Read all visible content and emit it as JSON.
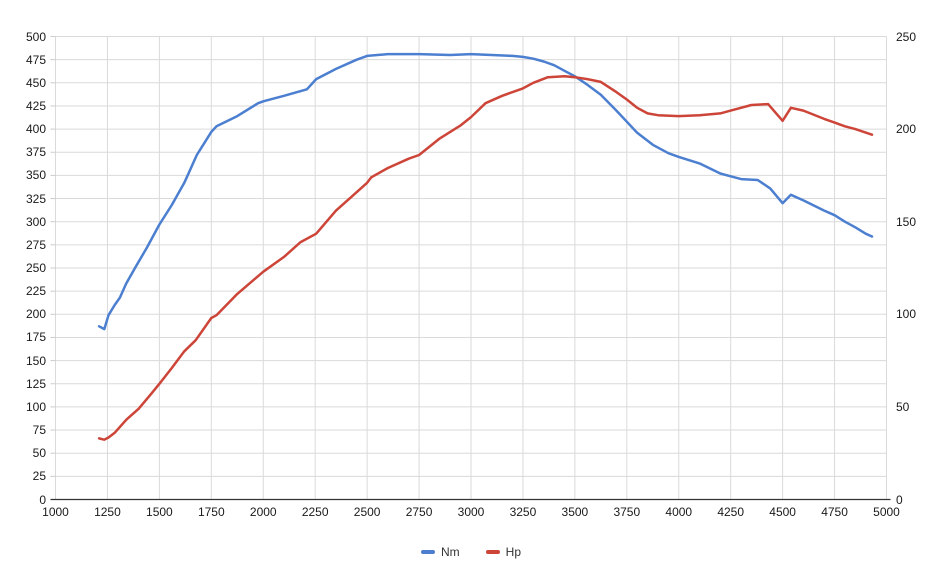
{
  "chart_data": {
    "type": "line",
    "title": "",
    "xlabel": "",
    "ylabel_left": "",
    "ylabel_right": "",
    "grid": true,
    "legend_position": "bottom",
    "x_axis": {
      "min": 1000,
      "max": 5000,
      "tick_step": 250,
      "ticks": [
        1000,
        1250,
        1500,
        1750,
        2000,
        2250,
        2500,
        2750,
        3000,
        3250,
        3500,
        3750,
        4000,
        4250,
        4500,
        4750,
        5000
      ]
    },
    "y_left": {
      "min": 0,
      "max": 500,
      "tick_step": 25,
      "ticks": [
        0,
        25,
        50,
        75,
        100,
        125,
        150,
        175,
        200,
        225,
        250,
        275,
        300,
        325,
        350,
        375,
        400,
        425,
        450,
        475,
        500
      ]
    },
    "y_right": {
      "min": 0,
      "max": 250,
      "tick_step": 50,
      "ticks": [
        0,
        50,
        100,
        150,
        200,
        250
      ]
    },
    "series": [
      {
        "name": "Nm",
        "axis": "left",
        "color": "#4c7fd0",
        "points": [
          [
            1210,
            187
          ],
          [
            1235,
            184
          ],
          [
            1255,
            199
          ],
          [
            1285,
            210
          ],
          [
            1310,
            218
          ],
          [
            1340,
            233
          ],
          [
            1385,
            251
          ],
          [
            1440,
            272
          ],
          [
            1500,
            297
          ],
          [
            1560,
            318
          ],
          [
            1620,
            342
          ],
          [
            1680,
            372
          ],
          [
            1750,
            397
          ],
          [
            1775,
            403
          ],
          [
            1875,
            414
          ],
          [
            1975,
            428
          ],
          [
            2000,
            430
          ],
          [
            2100,
            436
          ],
          [
            2210,
            443
          ],
          [
            2255,
            454
          ],
          [
            2350,
            465
          ],
          [
            2450,
            475
          ],
          [
            2500,
            479
          ],
          [
            2600,
            481
          ],
          [
            2750,
            481
          ],
          [
            2900,
            480
          ],
          [
            3000,
            481
          ],
          [
            3100,
            480
          ],
          [
            3200,
            479
          ],
          [
            3250,
            478
          ],
          [
            3300,
            476
          ],
          [
            3350,
            473
          ],
          [
            3400,
            469
          ],
          [
            3450,
            463
          ],
          [
            3500,
            457
          ],
          [
            3560,
            448
          ],
          [
            3625,
            437
          ],
          [
            3700,
            420
          ],
          [
            3750,
            408
          ],
          [
            3800,
            396
          ],
          [
            3875,
            383
          ],
          [
            3950,
            374
          ],
          [
            4000,
            370
          ],
          [
            4100,
            363
          ],
          [
            4200,
            352
          ],
          [
            4250,
            349
          ],
          [
            4300,
            346
          ],
          [
            4380,
            345
          ],
          [
            4440,
            336
          ],
          [
            4500,
            320
          ],
          [
            4540,
            329
          ],
          [
            4600,
            323
          ],
          [
            4700,
            312
          ],
          [
            4750,
            307
          ],
          [
            4800,
            300
          ],
          [
            4850,
            294
          ],
          [
            4900,
            287
          ],
          [
            4930,
            284
          ]
        ]
      },
      {
        "name": "Hp",
        "axis": "right",
        "color": "#cd4538",
        "points": [
          [
            1210,
            33
          ],
          [
            1235,
            32.3
          ],
          [
            1255,
            33.5
          ],
          [
            1285,
            36
          ],
          [
            1340,
            43
          ],
          [
            1400,
            49
          ],
          [
            1460,
            57
          ],
          [
            1500,
            62.5
          ],
          [
            1560,
            71
          ],
          [
            1620,
            80
          ],
          [
            1675,
            86
          ],
          [
            1750,
            98
          ],
          [
            1775,
            99.5
          ],
          [
            1875,
            111
          ],
          [
            2000,
            123
          ],
          [
            2100,
            131
          ],
          [
            2180,
            139
          ],
          [
            2255,
            143.5
          ],
          [
            2350,
            156
          ],
          [
            2430,
            164
          ],
          [
            2500,
            171
          ],
          [
            2520,
            174
          ],
          [
            2600,
            179
          ],
          [
            2700,
            184
          ],
          [
            2750,
            186
          ],
          [
            2850,
            195
          ],
          [
            2950,
            202
          ],
          [
            3000,
            206.5
          ],
          [
            3070,
            214
          ],
          [
            3150,
            218
          ],
          [
            3250,
            222
          ],
          [
            3300,
            225
          ],
          [
            3370,
            228
          ],
          [
            3450,
            228.5
          ],
          [
            3500,
            228
          ],
          [
            3560,
            227
          ],
          [
            3625,
            225.5
          ],
          [
            3700,
            220
          ],
          [
            3750,
            216
          ],
          [
            3800,
            211.5
          ],
          [
            3850,
            208.5
          ],
          [
            3900,
            207.5
          ],
          [
            4000,
            207
          ],
          [
            4100,
            207.5
          ],
          [
            4200,
            208.5
          ],
          [
            4250,
            210
          ],
          [
            4350,
            213
          ],
          [
            4430,
            213.5
          ],
          [
            4500,
            204.5
          ],
          [
            4540,
            211.5
          ],
          [
            4600,
            210
          ],
          [
            4700,
            205.5
          ],
          [
            4750,
            203.5
          ],
          [
            4800,
            201.5
          ],
          [
            4850,
            200
          ],
          [
            4930,
            197
          ]
        ]
      }
    ],
    "colors": {
      "gridline": "#dadada",
      "axis_line": "#333333",
      "tick_mark": "#cccccc",
      "label_text": "#1a1a1a"
    }
  }
}
